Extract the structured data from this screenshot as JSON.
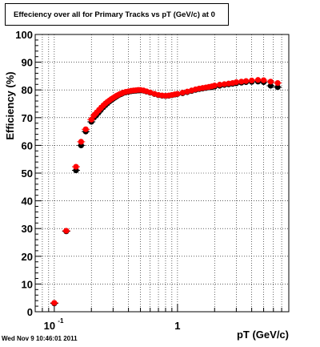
{
  "title": "Effeciency over all for Primary Tracks vs pT (GeV/c) at 0",
  "timestamp": "Wed Nov  9 10:46:01 2011",
  "chart_data": {
    "type": "scatter",
    "title": "Effeciency over all for Primary Tracks vs pT (GeV/c) at 0",
    "xlabel": "pT (GeV/c)",
    "ylabel": "Efficiency (%)",
    "xscale": "log",
    "xlim": [
      0.07,
      8.0
    ],
    "ylim": [
      0,
      100
    ],
    "grid": true,
    "x_tick_labels": [
      "10-1",
      "1"
    ],
    "y_tick_labels": [
      "0",
      "10",
      "20",
      "30",
      "40",
      "50",
      "60",
      "70",
      "80",
      "90",
      "100"
    ],
    "series": [
      {
        "color": "#000000",
        "x": [
          0.1,
          0.125,
          0.15,
          0.165,
          0.18,
          0.2,
          0.21,
          0.22,
          0.23,
          0.24,
          0.25,
          0.26,
          0.27,
          0.28,
          0.29,
          0.3,
          0.31,
          0.32,
          0.33,
          0.34,
          0.35,
          0.36,
          0.38,
          0.4,
          0.42,
          0.44,
          0.46,
          0.48,
          0.5,
          0.53,
          0.56,
          0.6,
          0.65,
          0.7,
          0.75,
          0.8,
          0.85,
          0.9,
          0.95,
          1.0,
          1.1,
          1.2,
          1.3,
          1.4,
          1.5,
          1.6,
          1.7,
          1.8,
          1.9,
          2.0,
          2.2,
          2.4,
          2.6,
          2.8,
          3.0,
          3.3,
          3.6,
          4.0,
          4.5,
          5.0,
          5.7,
          6.5
        ],
        "y": [
          3,
          29,
          51,
          60,
          65,
          68.5,
          70,
          71,
          72,
          73,
          73.8,
          74.5,
          75.2,
          75.8,
          76.3,
          76.8,
          77.2,
          77.6,
          78,
          78.3,
          78.5,
          78.8,
          79.1,
          79.3,
          79.5,
          79.6,
          79.7,
          79.8,
          79.8,
          79.7,
          79.4,
          79,
          78.5,
          78.1,
          77.9,
          77.8,
          77.9,
          78.1,
          78.3,
          78.5,
          78.8,
          79.2,
          79.6,
          80,
          80.3,
          80.5,
          80.7,
          80.9,
          81,
          81.2,
          81.5,
          81.8,
          82,
          82.2,
          82.4,
          82.6,
          82.8,
          82.9,
          83,
          82.8,
          81.5,
          81
        ]
      },
      {
        "color": "#ff0000",
        "x": [
          0.1,
          0.125,
          0.15,
          0.165,
          0.18,
          0.2,
          0.21,
          0.22,
          0.23,
          0.24,
          0.25,
          0.26,
          0.27,
          0.28,
          0.29,
          0.3,
          0.31,
          0.32,
          0.33,
          0.34,
          0.35,
          0.36,
          0.38,
          0.4,
          0.42,
          0.44,
          0.46,
          0.48,
          0.5,
          0.53,
          0.56,
          0.6,
          0.65,
          0.7,
          0.75,
          0.8,
          0.85,
          0.9,
          0.95,
          1.0,
          1.1,
          1.2,
          1.3,
          1.4,
          1.5,
          1.6,
          1.7,
          1.8,
          1.9,
          2.0,
          2.2,
          2.4,
          2.6,
          2.8,
          3.0,
          3.3,
          3.6,
          4.0,
          4.5,
          5.0,
          5.7,
          6.5
        ],
        "y": [
          3.2,
          29.2,
          52.3,
          61.3,
          65.8,
          69.3,
          70.8,
          71.8,
          72.7,
          73.6,
          74.4,
          75.1,
          75.7,
          76.2,
          76.7,
          77.1,
          77.5,
          77.9,
          78.2,
          78.5,
          78.7,
          79,
          79.3,
          79.5,
          79.7,
          79.8,
          79.9,
          80,
          80,
          79.8,
          79.5,
          79.1,
          78.6,
          78.2,
          78,
          77.9,
          78,
          78.2,
          78.4,
          78.6,
          79,
          79.4,
          79.8,
          80.2,
          80.5,
          80.7,
          80.9,
          81.1,
          81.3,
          81.6,
          81.9,
          82.1,
          82.3,
          82.5,
          82.8,
          83,
          83.2,
          83.4,
          83.6,
          83.5,
          83,
          82.5
        ]
      }
    ]
  }
}
